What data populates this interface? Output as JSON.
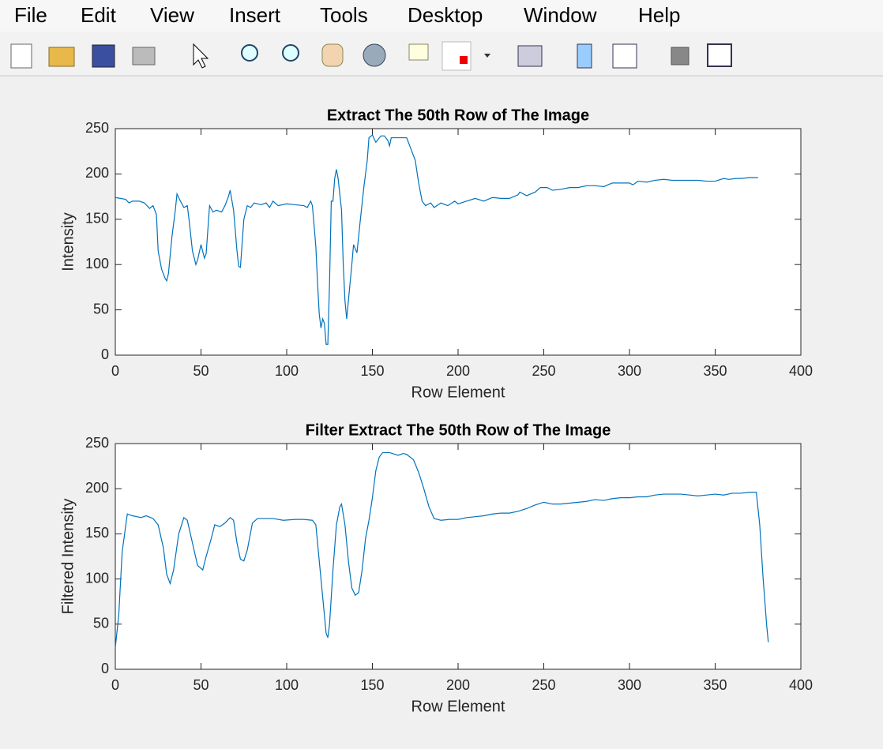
{
  "menu": [
    "File",
    "Edit",
    "View",
    "Insert",
    "Tools",
    "Desktop",
    "Window",
    "Help"
  ],
  "chart_data": [
    {
      "type": "line",
      "title": "Extract The 50th Row of The Image",
      "xlabel": "Row Element",
      "ylabel": "Intensity",
      "x": [
        0,
        3,
        6,
        8,
        10,
        14,
        17,
        20,
        22,
        24,
        25,
        27,
        29,
        30,
        31,
        33,
        35,
        36,
        38,
        40,
        42,
        43,
        45,
        47,
        48,
        50,
        52,
        53,
        55,
        57,
        59,
        62,
        64,
        66,
        67,
        69,
        71,
        72,
        73,
        75,
        77,
        79,
        81,
        85,
        88,
        90,
        92,
        95,
        100,
        105,
        110,
        112,
        114,
        115,
        117,
        118,
        119,
        120,
        121,
        122,
        123,
        124,
        125,
        126,
        127,
        128,
        129,
        130,
        132,
        133,
        134,
        135,
        136,
        138,
        139,
        141,
        143,
        145,
        147,
        148,
        150,
        152,
        155,
        157,
        159,
        160,
        161,
        165,
        170,
        172,
        175,
        177,
        179,
        181,
        184,
        186,
        190,
        194,
        198,
        200,
        205,
        210,
        215,
        220,
        225,
        230,
        235,
        236,
        240,
        245,
        248,
        252,
        255,
        260,
        265,
        270,
        275,
        280,
        285,
        290,
        295,
        300,
        302,
        305,
        310,
        315,
        320,
        325,
        330,
        335,
        340,
        345,
        350,
        355,
        358,
        362,
        365,
        370,
        375
      ],
      "series": [
        {
          "color": "#0072bd",
          "values": [
            174,
            173,
            172,
            168,
            170,
            170,
            168,
            162,
            165,
            155,
            115,
            95,
            85,
            82,
            90,
            130,
            160,
            178,
            170,
            163,
            165,
            150,
            115,
            100,
            105,
            122,
            107,
            112,
            165,
            158,
            160,
            158,
            165,
            175,
            182,
            160,
            115,
            98,
            97,
            150,
            165,
            163,
            168,
            166,
            168,
            163,
            170,
            165,
            167,
            166,
            165,
            163,
            170,
            165,
            120,
            80,
            45,
            30,
            40,
            35,
            12,
            12,
            80,
            170,
            170,
            195,
            205,
            195,
            160,
            100,
            60,
            40,
            60,
            100,
            122,
            113,
            150,
            185,
            215,
            240,
            243,
            235,
            242,
            242,
            237,
            231,
            240,
            240,
            240,
            230,
            215,
            190,
            170,
            165,
            168,
            163,
            168,
            165,
            170,
            167,
            170,
            173,
            170,
            174,
            173,
            173,
            177,
            180,
            176,
            180,
            185,
            185,
            182,
            183,
            185,
            185,
            187,
            187,
            186,
            190,
            190,
            190,
            188,
            192,
            191,
            193,
            194,
            193,
            193,
            193,
            193,
            192,
            192,
            195,
            194,
            195,
            195,
            196,
            196
          ]
        }
      ],
      "xlim": [
        0,
        400
      ],
      "xticks": [
        0,
        50,
        100,
        150,
        200,
        250,
        300,
        350,
        400
      ],
      "ylim": [
        0,
        250
      ],
      "yticks": [
        0,
        50,
        100,
        150,
        200,
        250
      ]
    },
    {
      "type": "line",
      "title": "Filter Extract The 50th Row of The Image",
      "xlabel": "Row Element",
      "ylabel": "Filtered Intensity",
      "x": [
        0,
        2,
        4,
        7,
        10,
        15,
        18,
        22,
        25,
        28,
        30,
        32,
        34,
        37,
        40,
        42,
        45,
        48,
        51,
        53,
        56,
        58,
        61,
        64,
        67,
        69,
        71,
        73,
        75,
        77,
        80,
        83,
        87,
        92,
        98,
        105,
        110,
        115,
        117,
        119,
        121,
        123,
        124,
        125,
        127,
        129,
        131,
        132,
        134,
        136,
        138,
        140,
        142,
        144,
        146,
        148,
        150,
        152,
        154,
        156,
        160,
        165,
        168,
        170,
        174,
        177,
        180,
        183,
        186,
        190,
        195,
        200,
        205,
        210,
        215,
        220,
        225,
        230,
        235,
        240,
        245,
        250,
        255,
        260,
        265,
        270,
        275,
        280,
        285,
        290,
        295,
        300,
        305,
        310,
        315,
        320,
        325,
        330,
        335,
        340,
        345,
        350,
        355,
        360,
        365,
        370,
        374,
        376,
        378,
        380,
        381
      ],
      "series": [
        {
          "color": "#0072bd",
          "values": [
            24,
            60,
            130,
            172,
            170,
            168,
            170,
            167,
            160,
            135,
            105,
            95,
            110,
            150,
            168,
            165,
            140,
            115,
            110,
            125,
            145,
            160,
            158,
            162,
            168,
            165,
            140,
            122,
            120,
            132,
            162,
            167,
            167,
            167,
            165,
            166,
            166,
            165,
            160,
            120,
            80,
            40,
            35,
            50,
            110,
            160,
            180,
            183,
            160,
            120,
            90,
            82,
            85,
            110,
            145,
            165,
            190,
            220,
            235,
            240,
            240,
            237,
            239,
            238,
            232,
            218,
            200,
            180,
            167,
            165,
            166,
            166,
            168,
            169,
            170,
            172,
            173,
            173,
            175,
            178,
            182,
            185,
            183,
            183,
            184,
            185,
            186,
            188,
            187,
            189,
            190,
            190,
            191,
            191,
            193,
            194,
            194,
            194,
            193,
            192,
            193,
            194,
            193,
            195,
            195,
            196,
            196,
            160,
            100,
            50,
            30
          ]
        }
      ],
      "xlim": [
        0,
        400
      ],
      "xticks": [
        0,
        50,
        100,
        150,
        200,
        250,
        300,
        350,
        400
      ],
      "ylim": [
        0,
        250
      ],
      "yticks": [
        0,
        50,
        100,
        150,
        200,
        250
      ]
    }
  ]
}
